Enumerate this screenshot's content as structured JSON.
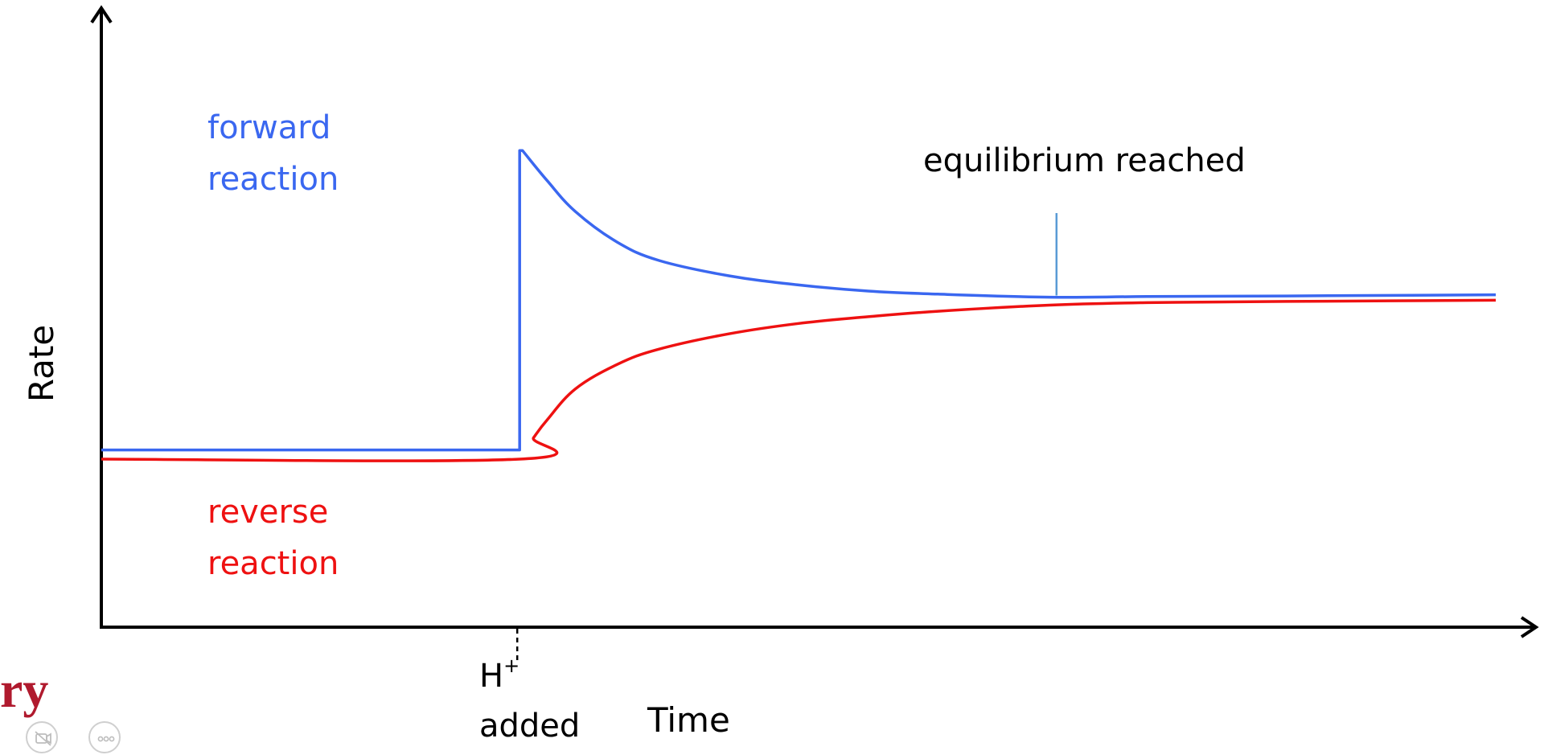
{
  "chart_data": {
    "type": "line",
    "title": "",
    "xlabel": "Time",
    "ylabel": "Rate",
    "grid": false,
    "colors": {
      "forward": "#3a67f0",
      "reverse": "#ee1111",
      "equilibrium_marker": "#5a9bd5",
      "axes": "#000000"
    },
    "series": [
      {
        "name": "forward reaction",
        "label_lines": [
          "forward",
          "reaction"
        ],
        "color": "#3a67f0",
        "x": [
          0,
          0.3,
          0.3,
          0.302,
          0.32,
          0.34,
          0.37,
          0.4,
          0.45,
          0.5,
          0.55,
          0.6,
          0.68,
          0.75,
          0.85,
          1.0
        ],
        "y": [
          0.29,
          0.29,
          0.78,
          0.78,
          0.73,
          0.68,
          0.63,
          0.6,
          0.575,
          0.56,
          0.55,
          0.545,
          0.54,
          0.541,
          0.542,
          0.544
        ]
      },
      {
        "name": "reverse reaction",
        "label_lines": [
          "reverse",
          "reaction"
        ],
        "color": "#ee1111",
        "x": [
          0,
          0.3,
          0.31,
          0.32,
          0.34,
          0.37,
          0.4,
          0.45,
          0.5,
          0.55,
          0.6,
          0.68,
          0.75,
          0.85,
          1.0
        ],
        "y": [
          0.275,
          0.275,
          0.31,
          0.34,
          0.39,
          0.43,
          0.455,
          0.48,
          0.497,
          0.508,
          0.517,
          0.527,
          0.531,
          0.533,
          0.535
        ]
      }
    ],
    "annotations": [
      {
        "text": "equilibrium reached",
        "x": 0.685
      },
      {
        "text_main": "H",
        "text_sup": "+",
        "text_line2": "added",
        "x": 0.3
      }
    ]
  },
  "logo": {
    "fragment": "ry"
  },
  "controls": [
    {
      "icon": "video-off-icon"
    },
    {
      "icon": "more-options-icon"
    }
  ]
}
